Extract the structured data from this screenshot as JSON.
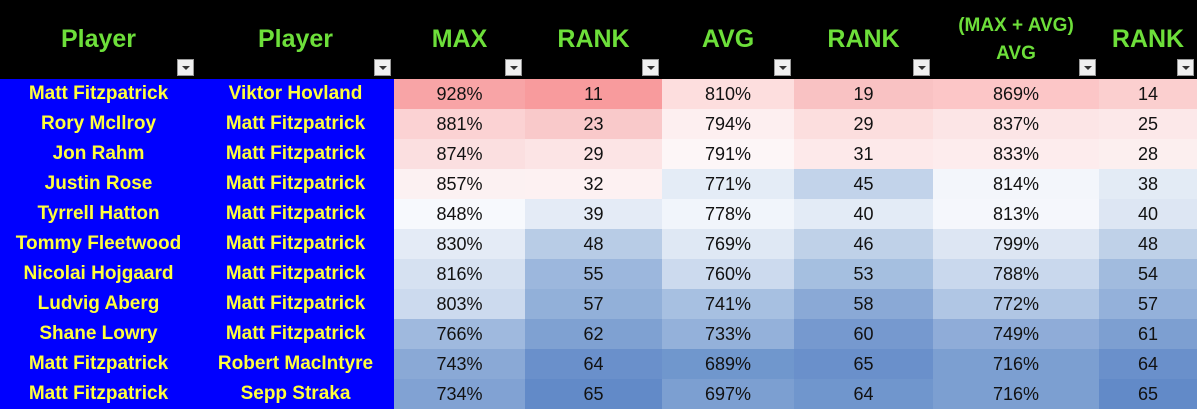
{
  "headers": [
    {
      "label": "Player",
      "label2": ""
    },
    {
      "label": "Player",
      "label2": ""
    },
    {
      "label": "MAX",
      "label2": ""
    },
    {
      "label": "RANK",
      "label2": ""
    },
    {
      "label": "AVG",
      "label2": ""
    },
    {
      "label": "RANK",
      "label2": ""
    },
    {
      "label": "(MAX + AVG)",
      "label2": "AVG"
    },
    {
      "label": "RANK",
      "label2": ""
    }
  ],
  "rows": [
    {
      "player1": "Matt Fitzpatrick",
      "player2": "Viktor Hovland",
      "max": "928%",
      "max_rank": "11",
      "avg": "810%",
      "avg_rank": "19",
      "combo": "869%",
      "combo_rank": "14"
    },
    {
      "player1": "Rory McIlroy",
      "player2": "Matt Fitzpatrick",
      "max": "881%",
      "max_rank": "23",
      "avg": "794%",
      "avg_rank": "29",
      "combo": "837%",
      "combo_rank": "25"
    },
    {
      "player1": "Jon Rahm",
      "player2": "Matt Fitzpatrick",
      "max": "874%",
      "max_rank": "29",
      "avg": "791%",
      "avg_rank": "31",
      "combo": "833%",
      "combo_rank": "28"
    },
    {
      "player1": "Justin Rose",
      "player2": "Matt Fitzpatrick",
      "max": "857%",
      "max_rank": "32",
      "avg": "771%",
      "avg_rank": "45",
      "combo": "814%",
      "combo_rank": "38"
    },
    {
      "player1": "Tyrrell Hatton",
      "player2": "Matt Fitzpatrick",
      "max": "848%",
      "max_rank": "39",
      "avg": "778%",
      "avg_rank": "40",
      "combo": "813%",
      "combo_rank": "40"
    },
    {
      "player1": "Tommy Fleetwood",
      "player2": "Matt Fitzpatrick",
      "max": "830%",
      "max_rank": "48",
      "avg": "769%",
      "avg_rank": "46",
      "combo": "799%",
      "combo_rank": "48"
    },
    {
      "player1": "Nicolai Hojgaard",
      "player2": "Matt Fitzpatrick",
      "max": "816%",
      "max_rank": "55",
      "avg": "760%",
      "avg_rank": "53",
      "combo": "788%",
      "combo_rank": "54"
    },
    {
      "player1": "Ludvig Aberg",
      "player2": "Matt Fitzpatrick",
      "max": "803%",
      "max_rank": "57",
      "avg": "741%",
      "avg_rank": "58",
      "combo": "772%",
      "combo_rank": "57"
    },
    {
      "player1": "Shane Lowry",
      "player2": "Matt Fitzpatrick",
      "max": "766%",
      "max_rank": "62",
      "avg": "733%",
      "avg_rank": "60",
      "combo": "749%",
      "combo_rank": "61"
    },
    {
      "player1": "Matt Fitzpatrick",
      "player2": "Robert MacIntyre",
      "max": "743%",
      "max_rank": "64",
      "avg": "689%",
      "avg_rank": "65",
      "combo": "716%",
      "combo_rank": "64"
    },
    {
      "player1": "Matt Fitzpatrick",
      "player2": "Sepp Straka",
      "max": "734%",
      "max_rank": "65",
      "avg": "697%",
      "avg_rank": "64",
      "combo": "716%",
      "combo_rank": "65"
    }
  ],
  "cell_colors": [
    [
      "#f8a4a6",
      "#f89b9d",
      "#fddede",
      "#f9c2c3",
      "#fcc6c7",
      "#fbcfcf"
    ],
    [
      "#fbd2d3",
      "#f9c9ca",
      "#fdeff0",
      "#fcdede",
      "#fce5e6",
      "#fce8e9"
    ],
    [
      "#fbdfe0",
      "#fce4e5",
      "#fdf6f7",
      "#fde9ea",
      "#fdeced",
      "#fcefef"
    ],
    [
      "#fcf1f2",
      "#fdf1f2",
      "#e4ecf6",
      "#c2d3ea",
      "#f3f6fb",
      "#e3ebf5"
    ],
    [
      "#f7f9fd",
      "#e4ebf6",
      "#f1f5fb",
      "#e3ebf6",
      "#f5f7fc",
      "#dde6f3"
    ],
    [
      "#e4ebf6",
      "#b8cce6",
      "#dfe8f4",
      "#bfd1e8",
      "#dde6f3",
      "#bfd1e8"
    ],
    [
      "#d6e1f1",
      "#9cb7dd",
      "#ccdaee",
      "#a5bfe0",
      "#c9d8ed",
      "#a1bbde"
    ],
    [
      "#ccdaee",
      "#92b0d9",
      "#a7c0e1",
      "#8aa9d6",
      "#b0c6e4",
      "#94b1da"
    ],
    [
      "#9fb9de",
      "#7fa1d2",
      "#94b1da",
      "#7699cf",
      "#8facd8",
      "#7d9fd1"
    ],
    [
      "#8aa9d6",
      "#6a90cb",
      "#7097cd",
      "#6a90cb",
      "#7c9fd1",
      "#6a90cb"
    ],
    [
      "#81a2d3",
      "#628ac8",
      "#7c9fd1",
      "#7096cd",
      "#7c9fd1",
      "#628ac8"
    ]
  ],
  "colors": {
    "header_bg": "#000000",
    "header_text": "#6ddf3a",
    "name_bg": "#0000ff",
    "name_text": "#ffff3c"
  }
}
